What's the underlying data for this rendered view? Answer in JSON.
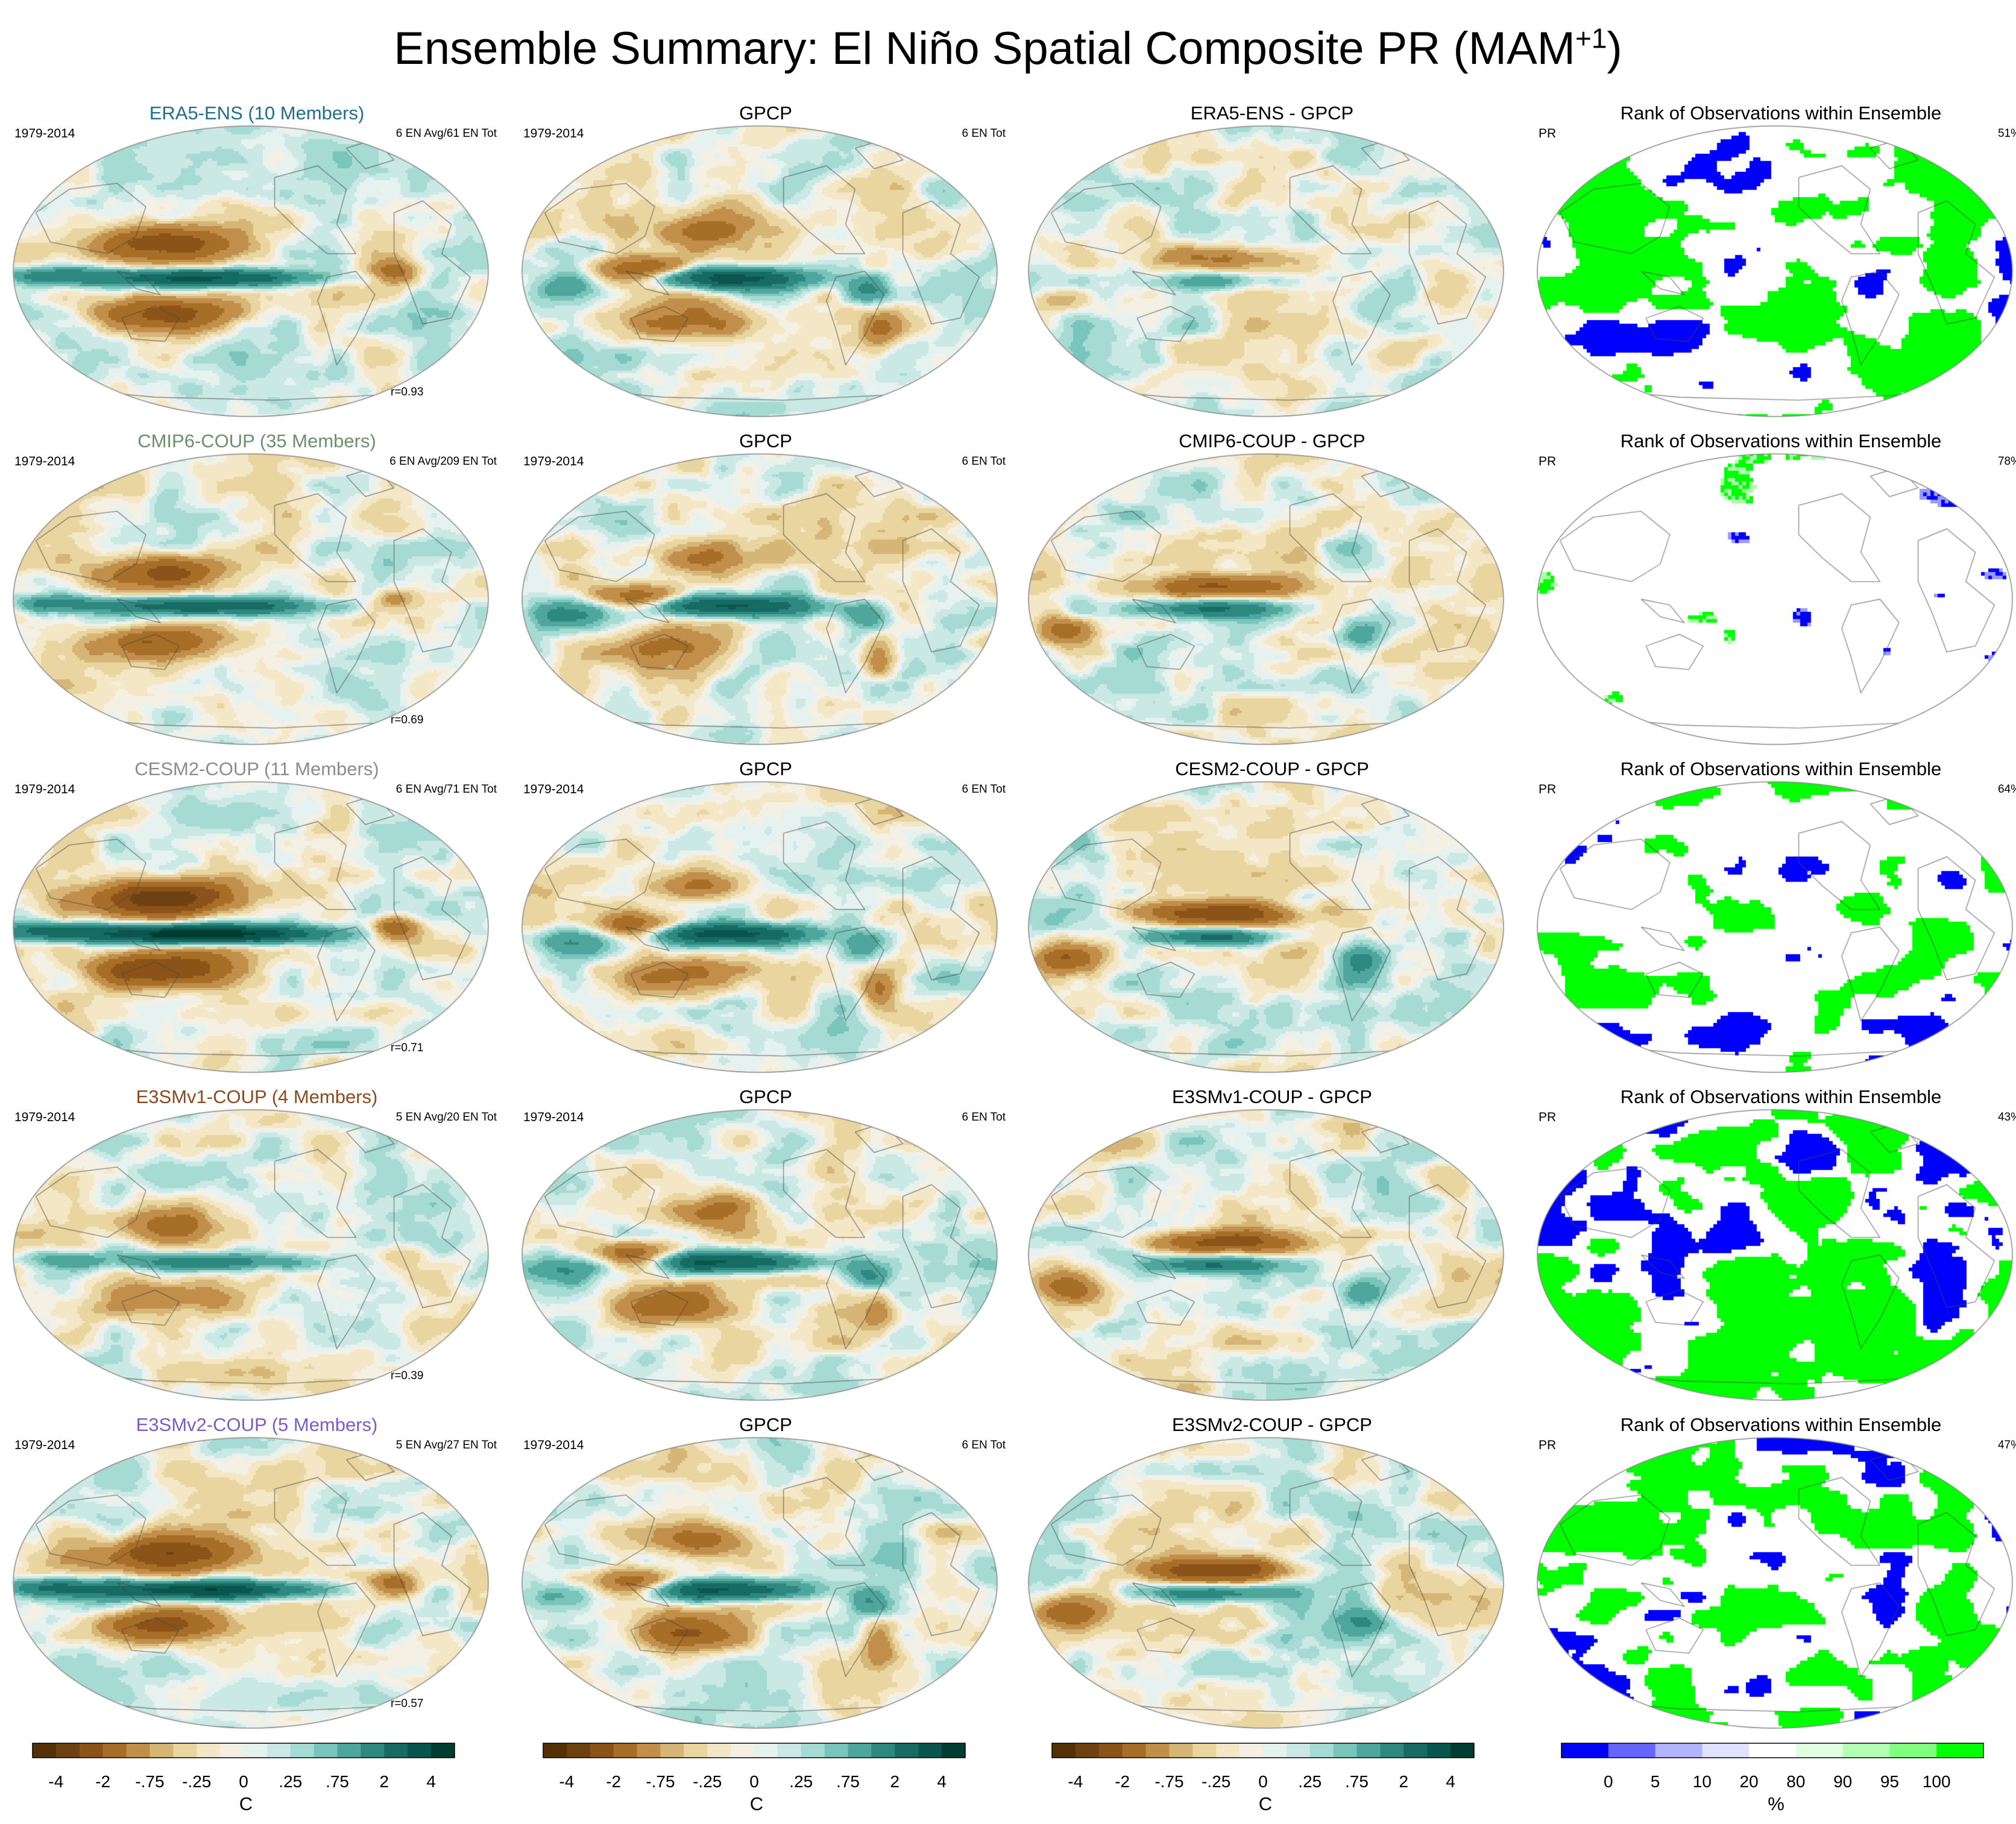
{
  "title": {
    "main": "Ensemble Summary: El Niño Spatial Composite PR (MAM",
    "superscript": "+1",
    "close": ")"
  },
  "colors": {
    "diverging": [
      "#543005",
      "#6e4110",
      "#8c5318",
      "#a66e26",
      "#c28f4a",
      "#d6b676",
      "#e8d59f",
      "#f3e7c6",
      "#f5f0e4",
      "#e6f2f0",
      "#cbe9e4",
      "#a6dbd3",
      "#7ac5bb",
      "#4fa69c",
      "#2d8880",
      "#166b63",
      "#0a564f",
      "#003c30"
    ],
    "rank": [
      "#0000ff",
      "#6666ff",
      "#b3b3ff",
      "#e0e0ff",
      "#ffffff",
      "#e0ffe0",
      "#b3ffb3",
      "#80ff80",
      "#00ff00"
    ],
    "title_model_colors": {
      "ERA5-ENS": "#1f6f8b",
      "CMIP6-COUP": "#6c8f6c",
      "CESM2-COUP": "#8c8c8c",
      "E3SMv1-COUP": "#8a4a1e",
      "E3SMv2-COUP": "#7a5ccc"
    }
  },
  "rows": [
    {
      "model": {
        "title": "ERA5-ENS (10 Members)",
        "color": "#1f6f8b",
        "left": "1979-2014",
        "right": "6 EN Avg/61 EN Tot",
        "corr": "r=0.93"
      },
      "obs": {
        "title": "GPCP",
        "left": "1979-2014",
        "right": "6 EN Tot"
      },
      "diff": {
        "title": "ERA5-ENS - GPCP"
      },
      "rank": {
        "title": "Rank of Observations within Ensemble",
        "left": "PR",
        "right": "51%"
      }
    },
    {
      "model": {
        "title": "CMIP6-COUP (35 Members)",
        "color": "#6c8f6c",
        "left": "1979-2014",
        "right": "6 EN Avg/209 EN Tot",
        "corr": "r=0.69"
      },
      "obs": {
        "title": "GPCP",
        "left": "1979-2014",
        "right": "6 EN Tot"
      },
      "diff": {
        "title": "CMIP6-COUP - GPCP"
      },
      "rank": {
        "title": "Rank of Observations within Ensemble",
        "left": "PR",
        "right": "78%"
      }
    },
    {
      "model": {
        "title": "CESM2-COUP (11 Members)",
        "color": "#8c8c8c",
        "left": "1979-2014",
        "right": "6 EN Avg/71 EN Tot",
        "corr": "r=0.71"
      },
      "obs": {
        "title": "GPCP",
        "left": "1979-2014",
        "right": "6 EN Tot"
      },
      "diff": {
        "title": "CESM2-COUP - GPCP"
      },
      "rank": {
        "title": "Rank of Observations within Ensemble",
        "left": "PR",
        "right": "64%"
      }
    },
    {
      "model": {
        "title": "E3SMv1-COUP (4 Members)",
        "color": "#8a4a1e",
        "left": "1979-2014",
        "right": "5 EN Avg/20 EN Tot",
        "corr": "r=0.39"
      },
      "obs": {
        "title": "GPCP",
        "left": "1979-2014",
        "right": "6 EN Tot"
      },
      "diff": {
        "title": "E3SMv1-COUP - GPCP"
      },
      "rank": {
        "title": "Rank of Observations within Ensemble",
        "left": "PR",
        "right": "43%"
      }
    },
    {
      "model": {
        "title": "E3SMv2-COUP (5 Members)",
        "color": "#7a5ccc",
        "left": "1979-2014",
        "right": "5 EN Avg/27 EN Tot",
        "corr": "r=0.57"
      },
      "obs": {
        "title": "GPCP",
        "left": "1979-2014",
        "right": "6 EN Tot"
      },
      "diff": {
        "title": "E3SMv2-COUP - GPCP"
      },
      "rank": {
        "title": "Rank of Observations within Ensemble",
        "left": "PR",
        "right": "47%"
      }
    }
  ],
  "chart_data": {
    "type": "heatmap",
    "projection": "Robinson (Pacific-centered)",
    "field": "PR",
    "period": "1979-2014",
    "season": "MAM+1",
    "colorbars": [
      {
        "labels": [
          "-4",
          "-2",
          "-.75",
          "-.25",
          "0",
          ".25",
          ".75",
          "2",
          "4"
        ],
        "unit": "C"
      },
      {
        "labels": [
          "-4",
          "-2",
          "-.75",
          "-.25",
          "0",
          ".25",
          ".75",
          "2",
          "4"
        ],
        "unit": "C"
      },
      {
        "labels": [
          "-4",
          "-2",
          "-.75",
          "-.25",
          "0",
          ".25",
          ".75",
          "2",
          "4"
        ],
        "unit": "C"
      },
      {
        "labels": [
          "0",
          "5",
          "10",
          "20",
          "80",
          "90",
          "95",
          "100"
        ],
        "unit": "%"
      }
    ],
    "rank_percent_within_5_95": [
      51,
      78,
      64,
      43,
      47
    ],
    "pattern_correlation": [
      0.93,
      0.69,
      0.71,
      0.39,
      0.57
    ]
  }
}
